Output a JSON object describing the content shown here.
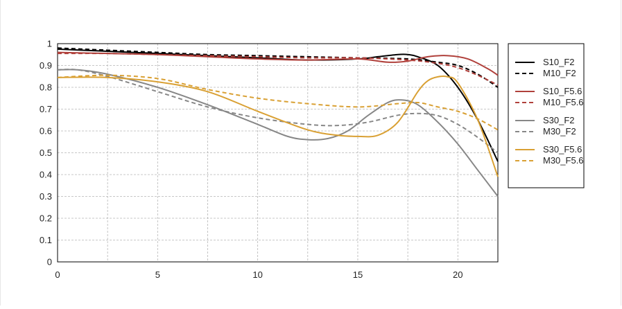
{
  "chart_data": {
    "type": "line",
    "title": "",
    "xlabel": "",
    "ylabel": "",
    "xlim": [
      0,
      22
    ],
    "ylim": [
      0,
      1
    ],
    "xticks": [
      "0",
      "5",
      "10",
      "15",
      "20"
    ],
    "xtick_values": [
      0,
      5,
      10,
      15,
      20
    ],
    "yticks": [
      "0",
      "0.1",
      "0.2",
      "0.3",
      "0.4",
      "0.5",
      "0.6",
      "0.7",
      "0.8",
      "0.9",
      "1"
    ],
    "ytick_values": [
      0,
      0.1,
      0.2,
      0.3,
      0.4,
      0.5,
      0.6,
      0.7,
      0.8,
      0.9,
      1
    ],
    "grid": true,
    "legend_position": "right",
    "series": [
      {
        "name": "S10_F2",
        "color": "#000000",
        "dash": false,
        "x": [
          0,
          2.5,
          5,
          7.5,
          10,
          12.5,
          15,
          16,
          17,
          17.5,
          18,
          19,
          20,
          21,
          22
        ],
        "y": [
          0.975,
          0.965,
          0.955,
          0.945,
          0.935,
          0.925,
          0.93,
          0.94,
          0.95,
          0.95,
          0.94,
          0.9,
          0.8,
          0.65,
          0.46
        ]
      },
      {
        "name": "M10_F2",
        "color": "#000000",
        "dash": true,
        "x": [
          0,
          2.5,
          5,
          7.5,
          10,
          12.5,
          15,
          17.5,
          19,
          20,
          21,
          22
        ],
        "y": [
          0.98,
          0.97,
          0.96,
          0.95,
          0.945,
          0.94,
          0.935,
          0.93,
          0.915,
          0.9,
          0.86,
          0.8
        ]
      },
      {
        "name": "S10_F5.6",
        "color": "#b0403b",
        "dash": false,
        "x": [
          0,
          2.5,
          5,
          7.5,
          10,
          12.5,
          15,
          16.5,
          17.5,
          18.5,
          19.5,
          20.5,
          21.5,
          22
        ],
        "y": [
          0.96,
          0.955,
          0.95,
          0.94,
          0.93,
          0.925,
          0.93,
          0.915,
          0.92,
          0.94,
          0.945,
          0.93,
          0.885,
          0.855
        ]
      },
      {
        "name": "M10_F5.6",
        "color": "#b0403b",
        "dash": true,
        "x": [
          0,
          2.5,
          5,
          7.5,
          10,
          12.5,
          15,
          17.5,
          19,
          20,
          21,
          22
        ],
        "y": [
          0.955,
          0.955,
          0.95,
          0.945,
          0.94,
          0.935,
          0.935,
          0.925,
          0.91,
          0.89,
          0.855,
          0.81
        ]
      },
      {
        "name": "S30_F2",
        "color": "#878787",
        "dash": false,
        "x": [
          0,
          1,
          2.5,
          5,
          7.5,
          10,
          11.5,
          12.5,
          13.5,
          14.5,
          15.5,
          16.5,
          17.2,
          18,
          19,
          20,
          21,
          22
        ],
        "y": [
          0.88,
          0.88,
          0.86,
          0.8,
          0.72,
          0.63,
          0.575,
          0.56,
          0.565,
          0.6,
          0.67,
          0.73,
          0.742,
          0.72,
          0.64,
          0.54,
          0.42,
          0.3
        ]
      },
      {
        "name": "M30_F2",
        "color": "#878787",
        "dash": true,
        "x": [
          0,
          1,
          2.5,
          5,
          7.5,
          10,
          12.5,
          14,
          15.5,
          17,
          18,
          19,
          20,
          21,
          22
        ],
        "y": [
          0.88,
          0.88,
          0.85,
          0.78,
          0.71,
          0.66,
          0.63,
          0.625,
          0.64,
          0.672,
          0.68,
          0.67,
          0.63,
          0.57,
          0.5
        ]
      },
      {
        "name": "S30_F5.6",
        "color": "#d9a033",
        "dash": false,
        "x": [
          0,
          2.5,
          5,
          7.5,
          10,
          12.5,
          14,
          15,
          16,
          17,
          18,
          18.5,
          19,
          19.5,
          20,
          21,
          22
        ],
        "y": [
          0.845,
          0.845,
          0.825,
          0.78,
          0.69,
          0.605,
          0.58,
          0.575,
          0.58,
          0.64,
          0.78,
          0.83,
          0.848,
          0.848,
          0.82,
          0.65,
          0.39
        ]
      },
      {
        "name": "M30_F5.6",
        "color": "#d9a033",
        "dash": true,
        "x": [
          0,
          2.5,
          5,
          7.5,
          10,
          12.5,
          15,
          17,
          18,
          19,
          20,
          21,
          22
        ],
        "y": [
          0.845,
          0.855,
          0.84,
          0.79,
          0.75,
          0.725,
          0.71,
          0.725,
          0.73,
          0.71,
          0.69,
          0.655,
          0.605
        ]
      }
    ]
  }
}
